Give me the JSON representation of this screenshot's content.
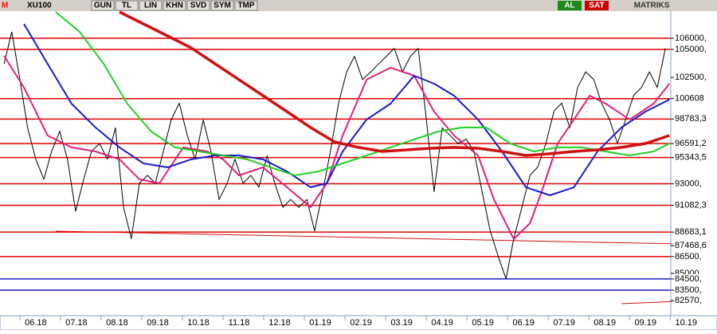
{
  "toolbar": {
    "logo": "M",
    "symbol": "XU100",
    "buttons": [
      "GUN",
      "TL",
      "LIN",
      "KHN",
      "SVD",
      "SYM",
      "TMP"
    ],
    "buy": "AL",
    "sell": "SAT",
    "brand": "MATRIKS"
  },
  "chart_data": {
    "type": "line",
    "xlim": [
      -0.88,
      16.76
    ],
    "ylim": [
      81220,
      108420
    ],
    "xticks": [
      {
        "value": 0,
        "label": "06.18"
      },
      {
        "value": 1,
        "label": "07.18"
      },
      {
        "value": 2,
        "label": "08.18"
      },
      {
        "value": 3,
        "label": "09.18"
      },
      {
        "value": 4,
        "label": "10.18"
      },
      {
        "value": 5,
        "label": "11.18"
      },
      {
        "value": 6,
        "label": "12.18"
      },
      {
        "value": 7,
        "label": "01.19"
      },
      {
        "value": 8,
        "label": "02.19"
      },
      {
        "value": 9,
        "label": "03.19"
      },
      {
        "value": 10,
        "label": "04.19"
      },
      {
        "value": 11,
        "label": "05.19"
      },
      {
        "value": 12,
        "label": "06.19"
      },
      {
        "value": 13,
        "label": "07.19"
      },
      {
        "value": 14,
        "label": "08.19"
      },
      {
        "value": 15,
        "label": "09.19"
      },
      {
        "value": 16,
        "label": "10.19"
      }
    ],
    "yticks": [
      {
        "value": 106000,
        "label": "106000,",
        "line": "#e00000"
      },
      {
        "value": 105000,
        "label": "105000,",
        "line": "#e00000"
      },
      {
        "value": 102500,
        "label": "102500,"
      },
      {
        "value": 100608,
        "label": "100608",
        "line": "#e00000"
      },
      {
        "value": 98783.3,
        "label": "98783,3",
        "line": "#e00000"
      },
      {
        "value": 96591.2,
        "label": "96591,2",
        "line": "#e00000"
      },
      {
        "value": 95343.5,
        "label": "95343,5",
        "line": "#e00000"
      },
      {
        "value": 93000,
        "label": "93000,",
        "line": "#e00000"
      },
      {
        "value": 91082.3,
        "label": "91082,3",
        "line": "#e00000"
      },
      {
        "value": 88683.1,
        "label": "88683,1",
        "line": "#e00000"
      },
      {
        "value": 87468.6,
        "label": "87468,6"
      },
      {
        "value": 86500,
        "label": "86500,",
        "line": "#e00000"
      },
      {
        "value": 85000,
        "label": "85000,"
      },
      {
        "value": 84500,
        "label": "84500,",
        "line": "#1c1cc8"
      },
      {
        "value": 83500,
        "label": "83500,",
        "line": "#1c1cc8"
      },
      {
        "value": 82570,
        "label": "82570,"
      }
    ],
    "series": [
      {
        "color": "#000000",
        "width": 1,
        "x": [
          -0.78,
          -0.59,
          -0.39,
          -0.2,
          0,
          0.2,
          0.39,
          0.59,
          0.78,
          0.98,
          1.18,
          1.37,
          1.57,
          1.76,
          1.96,
          2.16,
          2.35,
          2.55,
          2.75,
          2.94,
          3.14,
          3.33,
          3.53,
          3.73,
          3.92,
          4.12,
          4.31,
          4.51,
          4.71,
          4.9,
          5.1,
          5.29,
          5.49,
          5.69,
          5.88,
          6.08,
          6.27,
          6.47,
          6.67,
          6.86,
          7.06,
          7.25,
          7.45,
          7.65,
          7.84,
          8.04,
          8.24,
          8.43,
          8.63,
          8.82,
          9.02,
          9.22,
          9.41,
          9.61,
          9.8,
          10,
          10.2,
          10.39,
          10.59,
          10.78,
          10.98,
          11.18,
          11.37,
          11.57,
          11.76,
          11.96,
          12.16,
          12.35,
          12.55,
          12.75,
          12.94,
          13.14,
          13.33,
          13.53,
          13.73,
          13.92,
          14.12,
          14.31,
          14.51,
          14.71,
          14.9,
          15.1,
          15.29,
          15.49
        ],
        "values": [
          103700,
          106570,
          102300,
          98000,
          95200,
          93400,
          95900,
          97700,
          95200,
          90550,
          93400,
          95900,
          96600,
          95200,
          98000,
          90900,
          88100,
          93050,
          93750,
          93050,
          95900,
          98700,
          100200,
          97300,
          95200,
          98700,
          95900,
          91600,
          93050,
          95200,
          93050,
          93750,
          92700,
          95500,
          93050,
          90900,
          91600,
          90900,
          91600,
          88800,
          92300,
          95900,
          100200,
          103000,
          104400,
          102300,
          103000,
          103700,
          104400,
          105100,
          103000,
          104400,
          105100,
          98700,
          92300,
          98000,
          97300,
          96600,
          97000,
          95900,
          92300,
          88800,
          86600,
          84500,
          88100,
          90900,
          93750,
          94500,
          96600,
          99500,
          100200,
          98000,
          101600,
          103000,
          102300,
          100200,
          98700,
          96600,
          98700,
          100900,
          101600,
          103000,
          101600,
          105100
        ]
      },
      {
        "color": "#e0207a",
        "width": 2,
        "x": [
          -0.78,
          -0.29,
          0.29,
          0.88,
          1.47,
          2.06,
          2.55,
          3.04,
          3.63,
          4.22,
          4.61,
          5,
          5.59,
          6.18,
          6.76,
          7.16,
          7.55,
          8.14,
          8.73,
          9.31,
          9.8,
          10.29,
          10.88,
          11.27,
          11.76,
          12.16,
          12.45,
          12.84,
          13.24,
          13.63,
          14.02,
          14.61,
          15.2,
          15.59
        ],
        "values": [
          104430,
          101590,
          97310,
          96250,
          95890,
          95180,
          93400,
          93040,
          96250,
          95890,
          95180,
          93750,
          94470,
          92690,
          90910,
          93040,
          97310,
          102300,
          103370,
          102650,
          99450,
          97310,
          95530,
          91620,
          88060,
          89480,
          92330,
          96600,
          98740,
          100870,
          100160,
          98740,
          100160,
          101940
        ]
      },
      {
        "color": "#1a1acd",
        "width": 2,
        "x": [
          -0.29,
          0.29,
          0.88,
          1.47,
          2.06,
          2.65,
          3.24,
          3.82,
          4.41,
          5,
          5.59,
          6.18,
          6.76,
          7.16,
          7.55,
          8.14,
          8.73,
          9.31,
          9.8,
          10.29,
          10.88,
          11.47,
          12.06,
          12.65,
          13.24,
          13.82,
          14.41,
          15,
          15.59
        ],
        "values": [
          107280,
          103720,
          100160,
          98030,
          96250,
          94820,
          94470,
          95180,
          95530,
          95530,
          95180,
          94110,
          92690,
          93040,
          95890,
          98740,
          100160,
          102650,
          101940,
          100870,
          98740,
          95890,
          92690,
          91970,
          92690,
          95890,
          98030,
          99450,
          100520
        ]
      },
      {
        "color": "#22d022",
        "width": 2,
        "x": [
          0.49,
          1.08,
          1.67,
          2.25,
          2.84,
          3.43,
          4.02,
          4.61,
          5.2,
          5.78,
          6.37,
          6.96,
          7.55,
          8.14,
          8.73,
          9.31,
          9.9,
          10.49,
          11.08,
          11.67,
          12.25,
          12.84,
          13.43,
          14.02,
          14.61,
          15.2,
          15.59
        ],
        "values": [
          108350,
          106570,
          103720,
          100160,
          97670,
          96250,
          95890,
          95530,
          95180,
          94470,
          93750,
          94110,
          94820,
          95530,
          96250,
          96960,
          97670,
          98030,
          98030,
          96600,
          95890,
          96250,
          96250,
          95890,
          95530,
          95890,
          96600
        ]
      },
      {
        "color": "#d01010",
        "width": 3.5,
        "x": [
          2.06,
          2.65,
          3.24,
          3.82,
          4.41,
          5,
          5.59,
          6.18,
          6.76,
          7.35,
          7.94,
          8.53,
          9.12,
          9.71,
          10.29,
          10.88,
          11.47,
          12.06,
          12.65,
          13.24,
          13.82,
          14.41,
          15,
          15.59
        ],
        "values": [
          108350,
          107280,
          106210,
          105150,
          103720,
          102300,
          100870,
          99450,
          98030,
          96740,
          96250,
          95890,
          96030,
          96170,
          96250,
          96170,
          95890,
          95530,
          95680,
          95890,
          96030,
          96250,
          96600,
          97310
        ]
      }
    ]
  }
}
